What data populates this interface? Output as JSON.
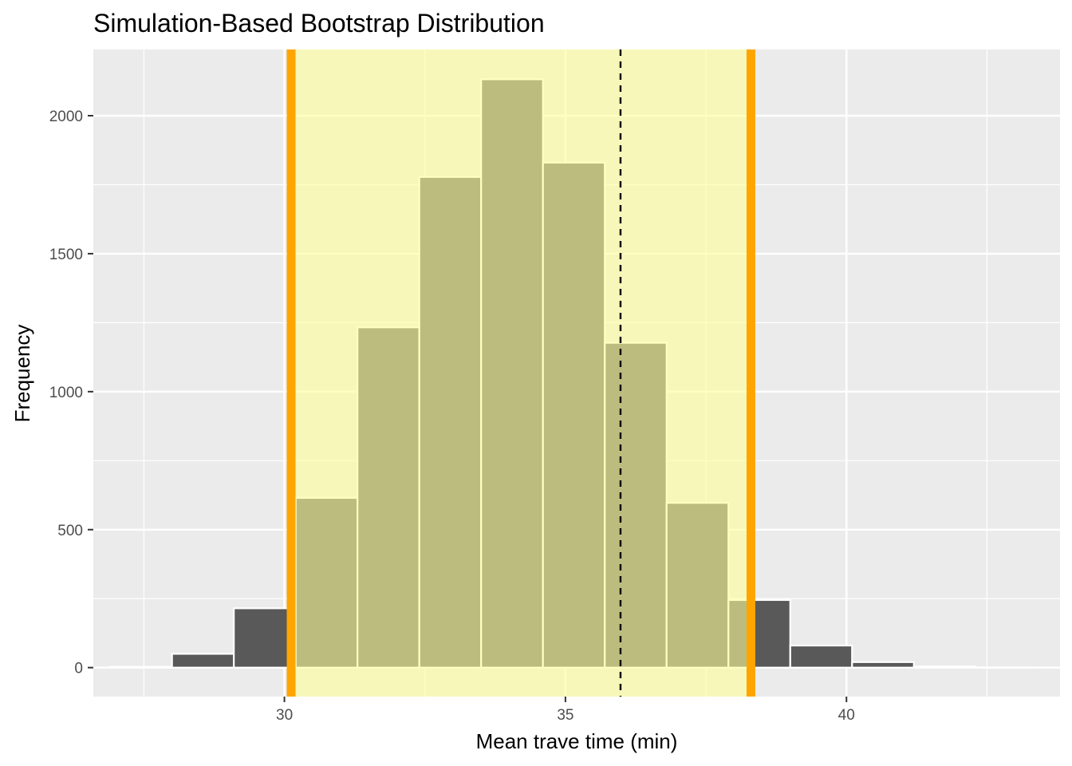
{
  "chart_data": {
    "type": "bar",
    "title": "Simulation-Based Bootstrap Distribution",
    "xlabel": "Mean trave time (min)",
    "ylabel": "Frequency",
    "xlim": [
      26.6,
      43.8
    ],
    "ylim": [
      -105,
      2240
    ],
    "x_ticks": [
      30,
      35,
      40
    ],
    "x_minor_ticks": [
      27.5,
      32.5,
      37.5,
      42.5
    ],
    "y_ticks": [
      0,
      500,
      1000,
      1500,
      2000
    ],
    "bin_width": 1.1,
    "bins": [
      {
        "x_start": 26.9,
        "x_end": 28.0,
        "count": 3
      },
      {
        "x_start": 28.0,
        "x_end": 29.1,
        "count": 50
      },
      {
        "x_start": 29.1,
        "x_end": 30.2,
        "count": 215
      },
      {
        "x_start": 30.2,
        "x_end": 31.3,
        "count": 615
      },
      {
        "x_start": 31.3,
        "x_end": 32.4,
        "count": 1233
      },
      {
        "x_start": 32.4,
        "x_end": 33.5,
        "count": 1778
      },
      {
        "x_start": 33.5,
        "x_end": 34.6,
        "count": 2132
      },
      {
        "x_start": 34.6,
        "x_end": 35.7,
        "count": 1830
      },
      {
        "x_start": 35.7,
        "x_end": 36.8,
        "count": 1177
      },
      {
        "x_start": 36.8,
        "x_end": 37.9,
        "count": 597
      },
      {
        "x_start": 37.9,
        "x_end": 39.0,
        "count": 245
      },
      {
        "x_start": 39.0,
        "x_end": 40.1,
        "count": 80
      },
      {
        "x_start": 40.1,
        "x_end": 41.2,
        "count": 20
      },
      {
        "x_start": 41.2,
        "x_end": 42.3,
        "count": 4
      },
      {
        "x_start": 42.3,
        "x_end": 43.4,
        "count": 1
      }
    ],
    "ci_lower": 30.12,
    "ci_upper": 38.3,
    "observed_mean": 35.98,
    "bar_fill": "#595959",
    "bar_outline": "#ffffff",
    "ci_shade_color": "#FFFF99",
    "ci_shade_opacity": 0.6,
    "ci_line_color": "#FFA500",
    "mean_line_color": "#000000",
    "panel_background": "#EBEBEB",
    "grid": true,
    "legend": "none"
  }
}
